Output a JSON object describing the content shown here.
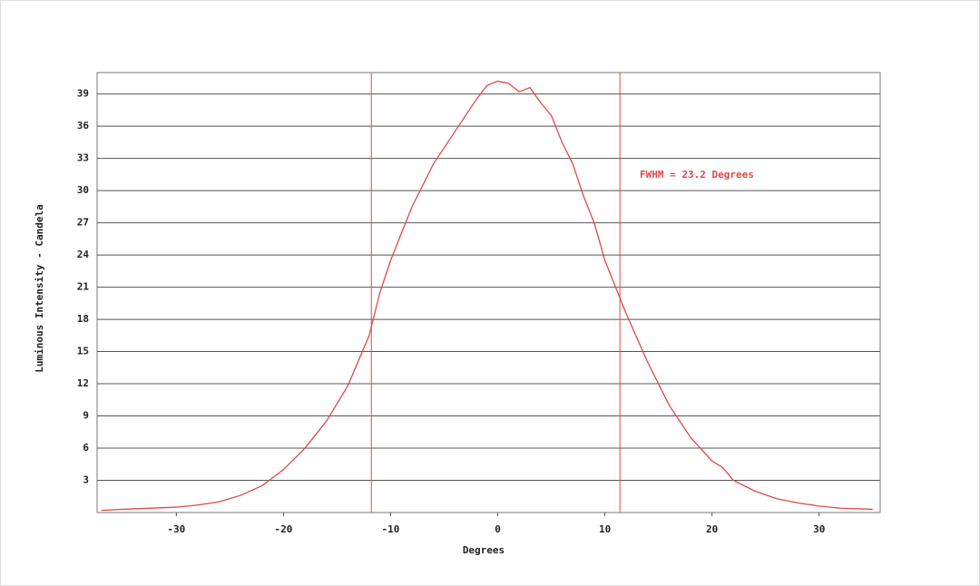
{
  "chart_data": {
    "type": "line",
    "xlabel": "Degrees",
    "ylabel": "Luminous Intensity - Candela",
    "annotation": "FWHM = 23.2 Degrees",
    "x": [
      -37,
      -35,
      -30,
      -28,
      -26,
      -24,
      -22,
      -20,
      -18,
      -16,
      -14,
      -12,
      -11,
      -10,
      -8,
      -6,
      -4,
      -2,
      -1,
      0,
      1,
      2,
      3,
      4,
      5,
      6,
      7,
      8,
      9,
      10,
      11,
      12,
      14,
      16,
      18,
      20,
      21,
      22,
      24,
      26,
      28,
      30,
      32,
      35
    ],
    "series": [
      {
        "name": "Luminous Intensity",
        "color": "#e04848",
        "values": [
          0.2,
          0.3,
          0.5,
          0.7,
          1.0,
          1.6,
          2.5,
          4.0,
          6.0,
          8.5,
          11.8,
          16.5,
          20.5,
          23.5,
          28.5,
          32.5,
          35.5,
          38.5,
          39.8,
          40.2,
          40.0,
          39.2,
          39.6,
          38.2,
          37.0,
          34.5,
          32.5,
          29.5,
          27.0,
          23.5,
          21.0,
          18.5,
          14.0,
          10.0,
          7.0,
          4.8,
          4.2,
          3.0,
          2.0,
          1.3,
          0.9,
          0.6,
          0.4,
          0.3
        ]
      }
    ],
    "vlines": [
      -11.8,
      11.4
    ],
    "xlim": [
      -37.4,
      35.7
    ],
    "ylim": [
      0,
      41
    ],
    "xticks": [
      -30,
      -20,
      -10,
      0,
      10,
      20,
      30
    ],
    "yticks": [
      3,
      6,
      9,
      12,
      15,
      18,
      21,
      24,
      27,
      30,
      33,
      36,
      39
    ],
    "grid": true
  }
}
